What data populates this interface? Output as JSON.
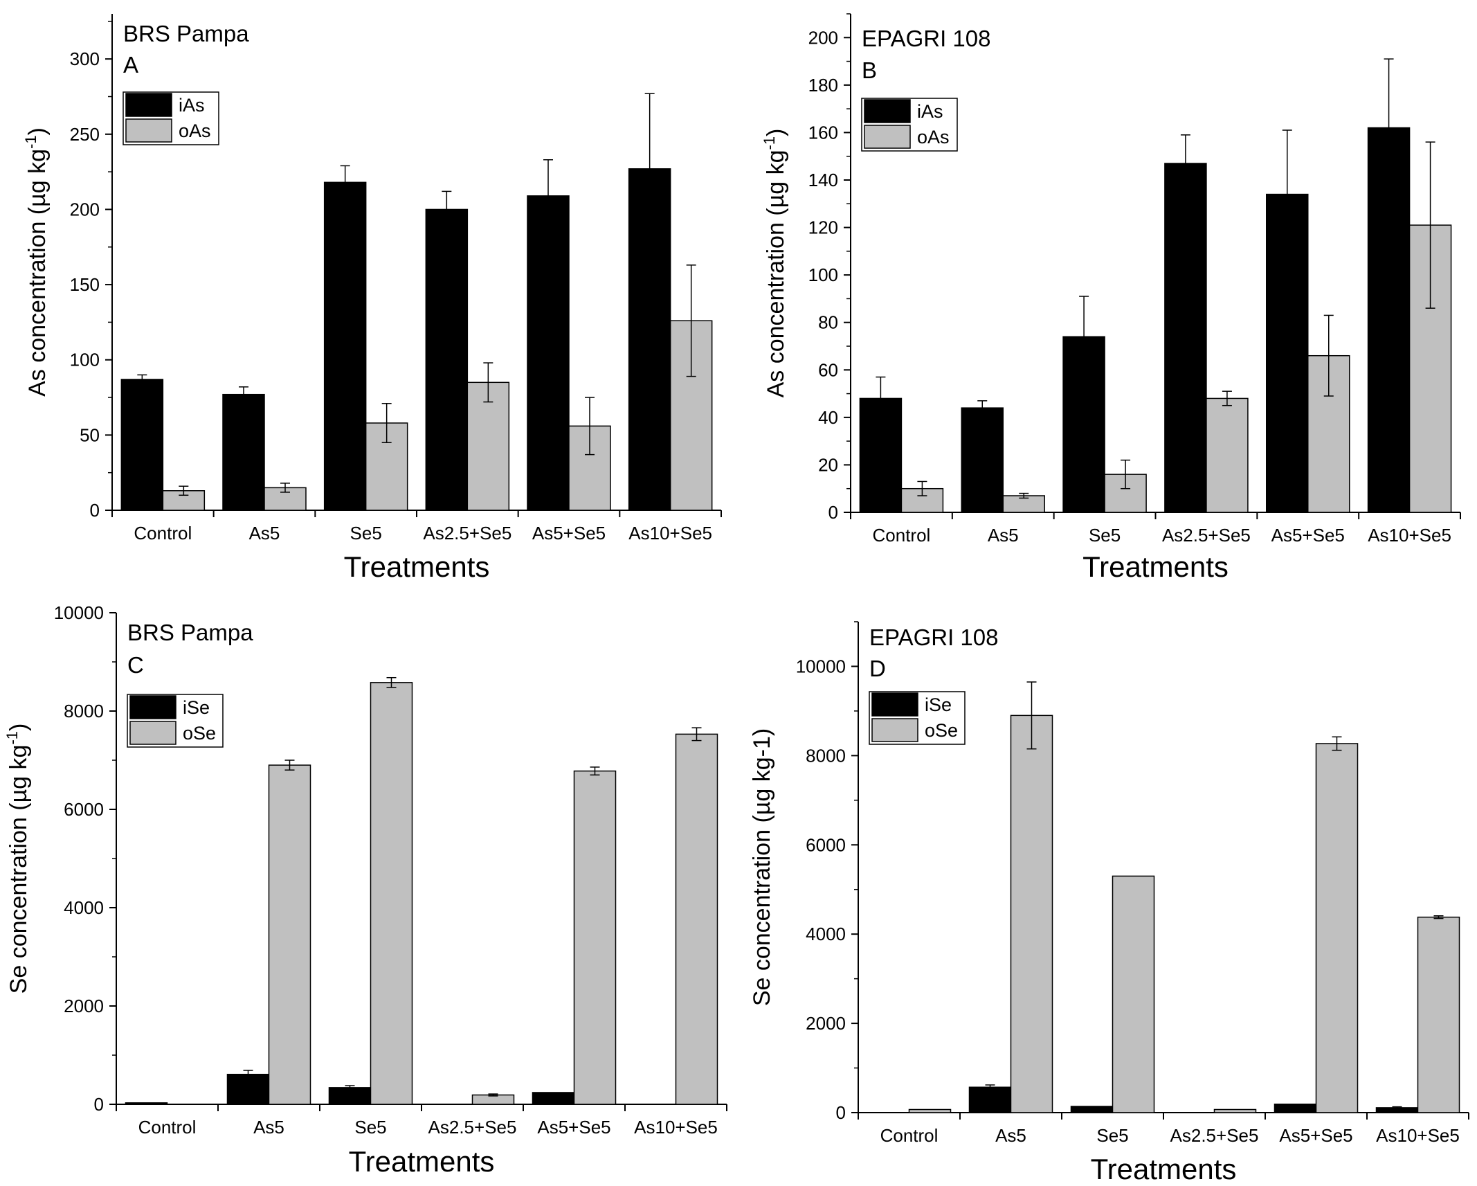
{
  "colors": {
    "inorganic": "#000000",
    "organic": "#c0c0c0",
    "axis": "#000000",
    "background": "#ffffff"
  },
  "chart_data": [
    {
      "type": "bar",
      "title": "BRS Pampa",
      "panel_label": "A",
      "xlabel": "Treatments",
      "ylabel": "As concentration (µg kg",
      "ylabel_sup": "-1",
      "ylabel_close": ")",
      "ylim": [
        0,
        330
      ],
      "yticks": [
        0,
        50,
        100,
        150,
        200,
        250,
        300
      ],
      "categories": [
        "Control",
        "As5",
        "Se5",
        "As2.5+Se5",
        "As5+Se5",
        "As10+Se5"
      ],
      "series": [
        {
          "name": "iAs",
          "values": [
            87,
            77,
            218,
            200,
            209,
            227
          ],
          "errors": [
            3,
            5,
            11,
            12,
            24,
            50
          ]
        },
        {
          "name": "oAs",
          "values": [
            13,
            15,
            58,
            85,
            56,
            126
          ],
          "errors": [
            3,
            3,
            13,
            13,
            19,
            37
          ]
        }
      ]
    },
    {
      "type": "bar",
      "title": "EPAGRI 108",
      "panel_label": "B",
      "xlabel": "Treatments",
      "ylabel": "As concentration (µg kg",
      "ylabel_sup": "-1",
      "ylabel_close": ")",
      "ylim": [
        0,
        210
      ],
      "yticks": [
        0,
        20,
        40,
        60,
        80,
        100,
        120,
        140,
        160,
        180,
        200
      ],
      "categories": [
        "Control",
        "As5",
        "Se5",
        "As2.5+Se5",
        "As5+Se5",
        "As10+Se5"
      ],
      "series": [
        {
          "name": "iAs",
          "values": [
            48,
            44,
            74,
            147,
            134,
            162
          ],
          "errors": [
            9,
            3,
            17,
            12,
            27,
            29
          ]
        },
        {
          "name": "oAs",
          "values": [
            10,
            7,
            16,
            48,
            66,
            121
          ],
          "errors": [
            3,
            1,
            6,
            3,
            17,
            35
          ]
        }
      ]
    },
    {
      "type": "bar",
      "title": "BRS Pampa",
      "panel_label": "C",
      "xlabel": "Treatments",
      "ylabel": "Se concentration (µg kg",
      "ylabel_sup": "-1",
      "ylabel_close": ")",
      "ylim": [
        0,
        10000
      ],
      "yticks": [
        0,
        2000,
        4000,
        6000,
        8000,
        10000
      ],
      "categories": [
        "Control",
        "As5",
        "Se5",
        "As2.5+Se5",
        "As5+Se5",
        "As10+Se5"
      ],
      "series": [
        {
          "name": "iSe",
          "values": [
            30,
            610,
            340,
            0,
            240,
            0
          ],
          "errors": [
            0,
            80,
            40,
            0,
            0,
            0
          ]
        },
        {
          "name": "oSe",
          "values": [
            0,
            6900,
            8580,
            190,
            6780,
            7530
          ],
          "errors": [
            0,
            100,
            100,
            20,
            80,
            130
          ]
        }
      ]
    },
    {
      "type": "bar",
      "title": "EPAGRI 108",
      "panel_label": "D",
      "xlabel": "Treatments",
      "ylabel": "Se concentration (µg kg-1)",
      "ylabel_sup": "",
      "ylabel_close": "",
      "ylim": [
        0,
        11000
      ],
      "yticks": [
        0,
        2000,
        4000,
        6000,
        8000,
        10000
      ],
      "categories": [
        "Control",
        "As5",
        "Se5",
        "As2.5+Se5",
        "As5+Se5",
        "As10+Se5"
      ],
      "series": [
        {
          "name": "iSe",
          "values": [
            0,
            570,
            140,
            0,
            190,
            110
          ],
          "errors": [
            0,
            50,
            0,
            0,
            0,
            20
          ]
        },
        {
          "name": "oSe",
          "values": [
            70,
            8900,
            5300,
            70,
            8270,
            4380
          ],
          "errors": [
            0,
            750,
            0,
            0,
            150,
            30
          ]
        }
      ]
    }
  ]
}
